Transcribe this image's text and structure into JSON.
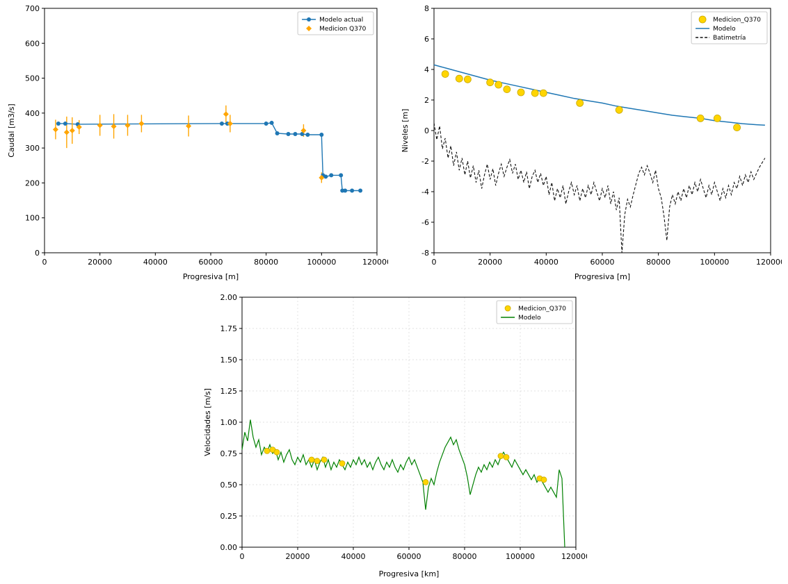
{
  "page": {
    "background": "#ffffff"
  },
  "chart_data": [
    {
      "id": "caudal",
      "type": "line",
      "title": "",
      "xlabel": "Progresiva [m]",
      "ylabel": "Caudal [m3/s]",
      "xlim": [
        0,
        120000
      ],
      "ylim": [
        0,
        700
      ],
      "grid": false,
      "legend_position": "top-right",
      "xticks": [
        0,
        20000,
        40000,
        60000,
        80000,
        100000,
        120000
      ],
      "xtick_labels": [
        "0",
        "20000",
        "40000",
        "60000",
        "80000",
        "100000",
        "120000"
      ],
      "yticks": [
        0,
        100,
        200,
        300,
        400,
        500,
        600,
        700
      ],
      "ytick_labels": [
        "0",
        "100",
        "200",
        "300",
        "400",
        "500",
        "600",
        "700"
      ],
      "series": [
        {
          "label": "Modelo actual",
          "kind": "line",
          "marker": "circle",
          "color": "#1f77b4",
          "ms": 3,
          "width": 1.4,
          "x": [
            5000,
            7500,
            12000,
            64000,
            66000,
            80000,
            82000,
            84000,
            88000,
            90500,
            93000,
            95000,
            100000,
            100500,
            101500,
            103500,
            107000,
            107500,
            108500,
            111000,
            114000
          ],
          "y": [
            370,
            370,
            368,
            370,
            370,
            370,
            372,
            342,
            340,
            340,
            340,
            338,
            338,
            222,
            218,
            222,
            222,
            178,
            178,
            178,
            178
          ]
        },
        {
          "label": "Medicion Q370",
          "kind": "scatter",
          "marker": "diamond",
          "color": "#ffa500",
          "ms": 4,
          "x": [
            4000,
            8000,
            10000,
            12500,
            20000,
            25000,
            30000,
            35000,
            52000,
            65500,
            67000,
            93500,
            100000
          ],
          "y": [
            353,
            345,
            350,
            360,
            365,
            362,
            365,
            370,
            363,
            397,
            370,
            350,
            215
          ],
          "yerr": [
            28,
            45,
            38,
            20,
            30,
            35,
            30,
            25,
            30,
            25,
            25,
            18,
            15
          ]
        }
      ]
    },
    {
      "id": "niveles",
      "type": "line",
      "title": "",
      "xlabel": "Progresiva [m]",
      "ylabel": "Niveles [m]",
      "xlim": [
        0,
        120000
      ],
      "ylim": [
        -8,
        8
      ],
      "grid": false,
      "legend_position": "top-right",
      "xticks": [
        0,
        20000,
        40000,
        60000,
        80000,
        100000,
        120000
      ],
      "xtick_labels": [
        "0",
        "20000",
        "40000",
        "60000",
        "80000",
        "100000",
        "120000"
      ],
      "yticks": [
        -8,
        -6,
        -4,
        -2,
        0,
        2,
        4,
        6,
        8
      ],
      "ytick_labels": [
        "-8",
        "-6",
        "-4",
        "-2",
        "0",
        "2",
        "4",
        "6",
        "8"
      ],
      "series": [
        {
          "label": "Medicion_Q370",
          "kind": "scatter",
          "marker": "circle",
          "color": "#ffd500",
          "mstroke": "#c8a800",
          "ms": 5,
          "x": [
            4000,
            9000,
            12000,
            20000,
            23000,
            26000,
            31000,
            36000,
            39000,
            52000,
            66000,
            95000,
            101000,
            108000
          ],
          "y": [
            3.7,
            3.4,
            3.35,
            3.15,
            3.0,
            2.7,
            2.5,
            2.45,
            2.45,
            1.8,
            1.35,
            0.8,
            0.8,
            0.2
          ]
        },
        {
          "label": "Modelo",
          "kind": "line",
          "color": "#1f77b4",
          "width": 1.5,
          "x": [
            0,
            5000,
            10000,
            15000,
            20000,
            25000,
            30000,
            35000,
            40000,
            45000,
            50000,
            55000,
            60000,
            65000,
            70000,
            75000,
            80000,
            85000,
            90000,
            95000,
            100000,
            105000,
            110000,
            115000,
            118000
          ],
          "y": [
            4.3,
            4.05,
            3.8,
            3.55,
            3.3,
            3.1,
            2.9,
            2.7,
            2.5,
            2.3,
            2.1,
            1.95,
            1.8,
            1.6,
            1.45,
            1.3,
            1.15,
            1.0,
            0.9,
            0.8,
            0.65,
            0.55,
            0.45,
            0.38,
            0.35
          ]
        },
        {
          "label": "Batimetría",
          "kind": "line",
          "color": "#111111",
          "width": 1.1,
          "dash": "4 2.5",
          "x0": 0,
          "dx": 1000,
          "y": [
            0.5,
            -0.6,
            0.3,
            -1.2,
            -0.5,
            -1.8,
            -1.0,
            -2.3,
            -1.4,
            -2.6,
            -1.8,
            -2.9,
            -2.0,
            -3.1,
            -2.3,
            -3.4,
            -2.6,
            -3.8,
            -2.9,
            -2.2,
            -3.2,
            -2.5,
            -3.6,
            -2.8,
            -2.2,
            -3.0,
            -2.4,
            -1.9,
            -2.8,
            -2.2,
            -3.2,
            -2.6,
            -3.4,
            -2.7,
            -3.8,
            -3.0,
            -2.6,
            -3.4,
            -2.8,
            -3.6,
            -3.0,
            -4.2,
            -3.4,
            -4.6,
            -3.8,
            -4.4,
            -3.6,
            -4.8,
            -4.0,
            -3.4,
            -4.2,
            -3.6,
            -4.6,
            -3.8,
            -4.4,
            -3.6,
            -4.2,
            -3.4,
            -4.0,
            -4.6,
            -3.8,
            -4.4,
            -3.6,
            -4.8,
            -4.0,
            -5.2,
            -4.4,
            -8.0,
            -5.5,
            -4.5,
            -5.0,
            -4.2,
            -3.5,
            -2.8,
            -2.4,
            -2.9,
            -2.3,
            -2.8,
            -3.4,
            -2.6,
            -3.8,
            -4.4,
            -5.6,
            -7.2,
            -5.0,
            -4.2,
            -4.8,
            -4.0,
            -4.6,
            -3.8,
            -4.4,
            -3.6,
            -4.2,
            -3.4,
            -4.0,
            -3.2,
            -3.8,
            -4.4,
            -3.6,
            -4.2,
            -3.4,
            -4.0,
            -4.6,
            -3.8,
            -4.4,
            -3.6,
            -4.2,
            -3.4,
            -3.8,
            -3.0,
            -3.6,
            -2.9,
            -3.4,
            -2.7,
            -3.2,
            -2.8,
            -2.4,
            -2.1,
            -1.8
          ]
        }
      ]
    },
    {
      "id": "velocidades",
      "type": "line",
      "title": "",
      "xlabel": "Progresiva [km]",
      "ylabel": "Velocidades [m/s]",
      "xlim": [
        0,
        120000
      ],
      "ylim": [
        0,
        2
      ],
      "grid": true,
      "legend_position": "top-right",
      "xticks": [
        0,
        20000,
        40000,
        60000,
        80000,
        100000,
        120000
      ],
      "xtick_labels": [
        "0",
        "20000",
        "40000",
        "60000",
        "80000",
        "100000",
        "120000"
      ],
      "yticks": [
        0,
        0.25,
        0.5,
        0.75,
        1,
        1.25,
        1.5,
        1.75,
        2
      ],
      "ytick_labels": [
        "0.00",
        "0.25",
        "0.50",
        "0.75",
        "1.00",
        "1.25",
        "1.50",
        "1.75",
        "2.00"
      ],
      "series": [
        {
          "label": "Medicion_Q370",
          "kind": "scatter",
          "marker": "circle",
          "color": "#ffd500",
          "mstroke": "#c8a800",
          "ms": 4,
          "x": [
            9000,
            11000,
            12500,
            25000,
            27000,
            29500,
            36000,
            66000,
            93000,
            95000,
            107000,
            108500
          ],
          "y": [
            0.77,
            0.78,
            0.76,
            0.7,
            0.69,
            0.7,
            0.67,
            0.52,
            0.73,
            0.72,
            0.55,
            0.54
          ]
        },
        {
          "label": "Modelo",
          "kind": "line",
          "color": "#008000",
          "width": 1.2,
          "x0": 0,
          "dx": 1000,
          "y": [
            0.78,
            0.92,
            0.85,
            1.02,
            0.88,
            0.8,
            0.86,
            0.74,
            0.8,
            0.76,
            0.82,
            0.75,
            0.78,
            0.7,
            0.76,
            0.68,
            0.74,
            0.78,
            0.7,
            0.66,
            0.72,
            0.68,
            0.74,
            0.66,
            0.7,
            0.64,
            0.7,
            0.62,
            0.68,
            0.72,
            0.64,
            0.7,
            0.62,
            0.68,
            0.64,
            0.7,
            0.66,
            0.62,
            0.68,
            0.64,
            0.7,
            0.66,
            0.72,
            0.66,
            0.7,
            0.64,
            0.68,
            0.62,
            0.68,
            0.72,
            0.66,
            0.62,
            0.68,
            0.64,
            0.7,
            0.64,
            0.6,
            0.66,
            0.62,
            0.68,
            0.72,
            0.66,
            0.7,
            0.64,
            0.58,
            0.52,
            0.3,
            0.48,
            0.55,
            0.5,
            0.6,
            0.68,
            0.74,
            0.8,
            0.84,
            0.88,
            0.82,
            0.86,
            0.78,
            0.72,
            0.66,
            0.56,
            0.42,
            0.5,
            0.58,
            0.64,
            0.6,
            0.66,
            0.62,
            0.68,
            0.64,
            0.7,
            0.66,
            0.72,
            0.76,
            0.72,
            0.68,
            0.64,
            0.7,
            0.66,
            0.62,
            0.58,
            0.62,
            0.58,
            0.54,
            0.58,
            0.52,
            0.56,
            0.52,
            0.48,
            0.44,
            0.48,
            0.44,
            0.4,
            0.62,
            0.55,
            0.0
          ]
        }
      ]
    }
  ]
}
